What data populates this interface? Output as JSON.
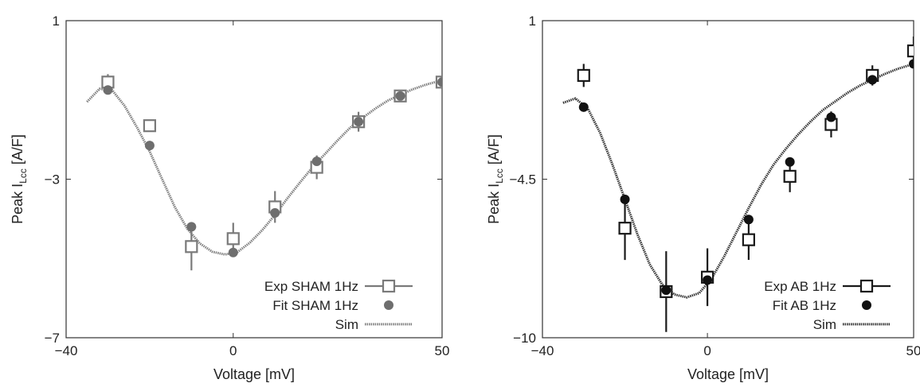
{
  "chart_data": [
    {
      "type": "scatter",
      "xlabel": "Voltage [mV]",
      "ylabel_main": "Peak I",
      "ylabel_sub": "Lcc",
      "ylabel_unit": " [A/F]",
      "xlim": [
        -40,
        50
      ],
      "ylim": [
        -7,
        1
      ],
      "xticks": [
        "−40",
        "0",
        "50"
      ],
      "yticks": [
        "1",
        "−3",
        "−7"
      ],
      "xtick_values": [
        -40,
        0,
        50
      ],
      "ytick_values": [
        1,
        -3,
        -7
      ],
      "colors": {
        "exp": "#7a7a7a",
        "fit": "#6e6e6e",
        "sim": "#7f7f7f"
      },
      "series": [
        {
          "name": "Exp SHAM 1Hz",
          "kind": "exp",
          "x": [
            -30,
            -20,
            -10,
            0,
            10,
            20,
            30,
            40,
            50
          ],
          "y": [
            -0.55,
            -1.65,
            -4.7,
            -4.5,
            -3.7,
            -2.7,
            -1.55,
            -0.9,
            -0.55
          ],
          "err": [
            0.2,
            0.15,
            0.6,
            0.4,
            0.4,
            0.3,
            0.25,
            0.15,
            0.1
          ]
        },
        {
          "name": "Fit SHAM 1Hz",
          "kind": "fit",
          "x": [
            -30,
            -20,
            -10,
            0,
            10,
            20,
            30,
            40,
            50
          ],
          "y": [
            -0.75,
            -2.15,
            -4.2,
            -4.85,
            -3.85,
            -2.55,
            -1.55,
            -0.9,
            -0.55
          ]
        },
        {
          "name": "Sim",
          "kind": "sim",
          "x": [
            -35,
            -32,
            -29,
            -26,
            -23,
            -20,
            -17,
            -14,
            -11,
            -8,
            -5,
            -2,
            1,
            4,
            7,
            10,
            13,
            16,
            19,
            22,
            25,
            28,
            31,
            34,
            37,
            40,
            43,
            46,
            50
          ],
          "y": [
            -1.05,
            -0.72,
            -0.75,
            -1.15,
            -1.7,
            -2.3,
            -3.0,
            -3.7,
            -4.25,
            -4.62,
            -4.83,
            -4.9,
            -4.84,
            -4.6,
            -4.28,
            -3.9,
            -3.48,
            -3.08,
            -2.7,
            -2.36,
            -2.02,
            -1.7,
            -1.45,
            -1.22,
            -1.02,
            -0.87,
            -0.73,
            -0.62,
            -0.5
          ]
        }
      ]
    },
    {
      "type": "scatter",
      "xlabel": "Voltage [mV]",
      "ylabel_main": "Peak I",
      "ylabel_sub": "Lcc",
      "ylabel_unit": " [A/F]",
      "xlim": [
        -40,
        50
      ],
      "ylim": [
        -10,
        1
      ],
      "xticks": [
        "−40",
        "0",
        "50"
      ],
      "yticks": [
        "1",
        "−4.5",
        "−10"
      ],
      "xtick_values": [
        -40,
        0,
        50
      ],
      "ytick_values": [
        1,
        -4.5,
        -10
      ],
      "colors": {
        "exp": "#1a1a1a",
        "fit": "#111111",
        "sim": "#333333"
      },
      "series": [
        {
          "name": "Exp AB 1Hz",
          "kind": "exp",
          "x": [
            -30,
            -20,
            -10,
            0,
            10,
            20,
            30,
            40,
            50
          ],
          "y": [
            -0.9,
            -6.2,
            -8.4,
            -7.9,
            -6.6,
            -4.4,
            -2.6,
            -0.9,
            -0.05
          ],
          "err": [
            0.4,
            1.1,
            1.4,
            1.0,
            0.7,
            0.55,
            0.45,
            0.35,
            0.5
          ]
        },
        {
          "name": "Fit AB 1Hz",
          "kind": "fit",
          "x": [
            -30,
            -20,
            -10,
            0,
            10,
            20,
            30,
            40,
            50
          ],
          "y": [
            -2.0,
            -5.2,
            -8.35,
            -8.0,
            -5.9,
            -3.9,
            -2.35,
            -1.05,
            -0.5
          ]
        },
        {
          "name": "Sim",
          "kind": "sim",
          "x": [
            -35,
            -32,
            -29,
            -26,
            -23,
            -20,
            -17,
            -14,
            -11,
            -8,
            -5,
            -2,
            1,
            4,
            7,
            10,
            13,
            16,
            19,
            22,
            25,
            28,
            31,
            34,
            37,
            40,
            43,
            46,
            50
          ],
          "y": [
            -1.85,
            -1.7,
            -2.05,
            -2.9,
            -4.0,
            -5.2,
            -6.4,
            -7.45,
            -8.15,
            -8.5,
            -8.6,
            -8.45,
            -7.95,
            -7.2,
            -6.35,
            -5.5,
            -4.7,
            -4.0,
            -3.45,
            -2.95,
            -2.5,
            -2.1,
            -1.8,
            -1.5,
            -1.25,
            -1.05,
            -0.85,
            -0.68,
            -0.5
          ]
        }
      ]
    }
  ]
}
